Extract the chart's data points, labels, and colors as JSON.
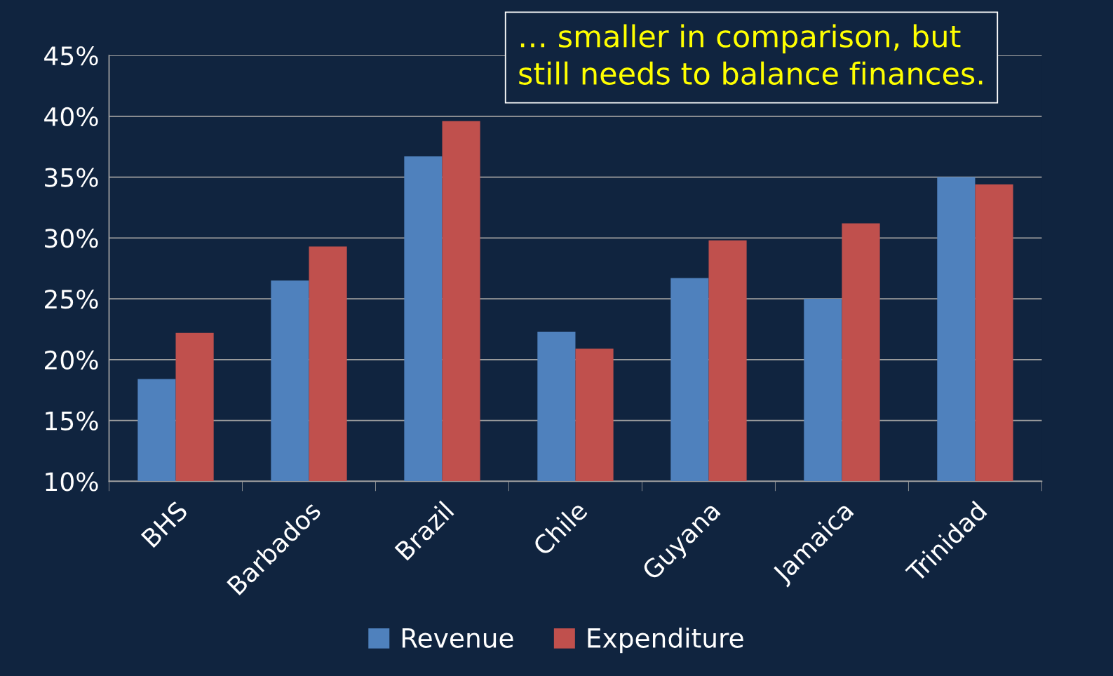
{
  "chart_data": {
    "type": "bar",
    "categories": [
      "BHS",
      "Barbados",
      "Brazil",
      "Chile",
      "Guyana",
      "Jamaica",
      "Trinidad"
    ],
    "series": [
      {
        "name": "Revenue",
        "color": "#4f81bd",
        "values": [
          18.4,
          26.5,
          36.7,
          22.3,
          26.7,
          25.0,
          35.0
        ]
      },
      {
        "name": "Expenditure",
        "color": "#c0504d",
        "values": [
          22.2,
          29.3,
          39.6,
          20.9,
          29.8,
          31.2,
          34.4
        ]
      }
    ],
    "ylim": [
      10,
      45
    ],
    "yticks": [
      {
        "value": 10,
        "label": "10%"
      },
      {
        "value": 15,
        "label": "15%"
      },
      {
        "value": 20,
        "label": "20%"
      },
      {
        "value": 25,
        "label": "25%"
      },
      {
        "value": 30,
        "label": "30%"
      },
      {
        "value": 35,
        "label": "35%"
      },
      {
        "value": 40,
        "label": "40%"
      },
      {
        "value": 45,
        "label": "45%"
      }
    ],
    "grid": "y",
    "legend": "bottom",
    "annotations": [
      "… smaller in comparison, but\nstill needs to balance finances."
    ]
  }
}
